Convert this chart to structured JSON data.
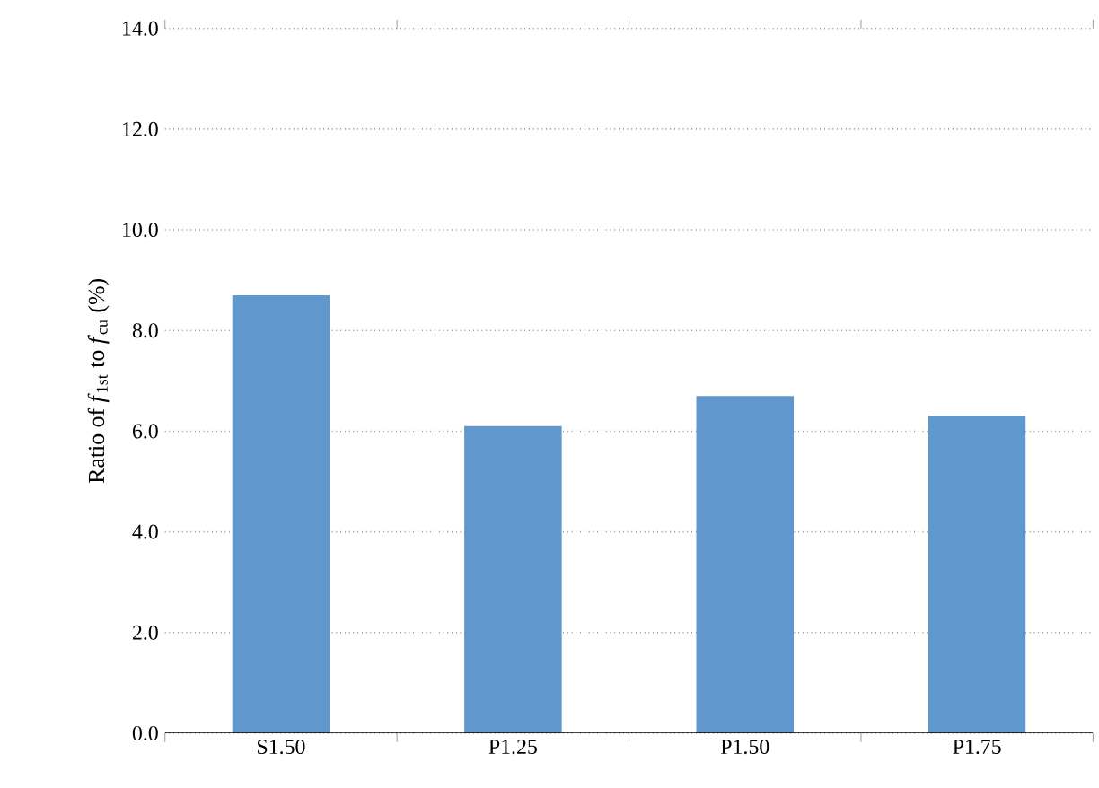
{
  "chart_data": {
    "type": "bar",
    "ylabel": "Ratio of *f*$_{1st}$ to *f*$_{cu}$ (%)",
    "categories": [
      "S1.50",
      "P1.25",
      "P1.50",
      "P1.75"
    ],
    "values": [
      8.7,
      6.1,
      6.7,
      6.3
    ],
    "color": "#6097cd",
    "ylim": [
      0,
      14
    ],
    "yticks": [
      {
        "value": 0,
        "label": "0.0"
      },
      {
        "value": 2,
        "label": "2.0"
      },
      {
        "value": 4,
        "label": "4.0"
      },
      {
        "value": 6,
        "label": "6.0"
      },
      {
        "value": 8,
        "label": "8.0"
      },
      {
        "value": 10,
        "label": "10.0"
      },
      {
        "value": 12,
        "label": "12.0"
      },
      {
        "value": 14,
        "label": "14.0"
      }
    ],
    "grid": "y"
  }
}
